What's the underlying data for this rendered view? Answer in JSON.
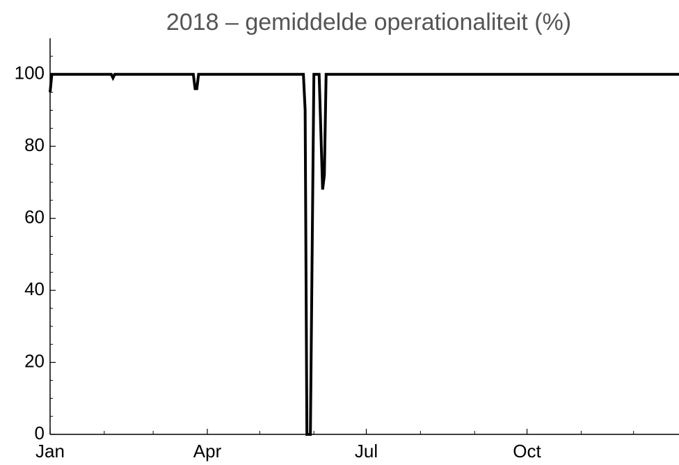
{
  "chart_data": {
    "type": "line",
    "title": "2018 – gemiddelde operationaliteit (%)",
    "x": [
      0,
      1,
      35,
      36,
      37,
      82,
      83,
      84,
      85,
      145,
      146,
      147,
      149,
      151,
      154,
      156,
      157,
      158,
      360
    ],
    "series": [
      {
        "name": "operationaliteit",
        "color": "#000000",
        "values": [
          95,
          100,
          100,
          99,
          100,
          100,
          96,
          96,
          100,
          100,
          90,
          0,
          0,
          100,
          100,
          68,
          72,
          100,
          100
        ]
      }
    ],
    "xlim": [
      0,
      360
    ],
    "xticks": [
      {
        "value": 0,
        "label": "Jan"
      },
      {
        "value": 90,
        "label": "Apr"
      },
      {
        "value": 181,
        "label": "Jul"
      },
      {
        "value": 273,
        "label": "Oct"
      }
    ],
    "minor_xticks": [
      31,
      59,
      120,
      151,
      212,
      243,
      304,
      334
    ],
    "ylim": [
      0,
      110
    ],
    "yticks": [
      0,
      20,
      40,
      60,
      80,
      100
    ],
    "minor_yticks": [
      5,
      10,
      15,
      25,
      30,
      35,
      45,
      50,
      55,
      65,
      70,
      75,
      85,
      90,
      95,
      105
    ]
  }
}
